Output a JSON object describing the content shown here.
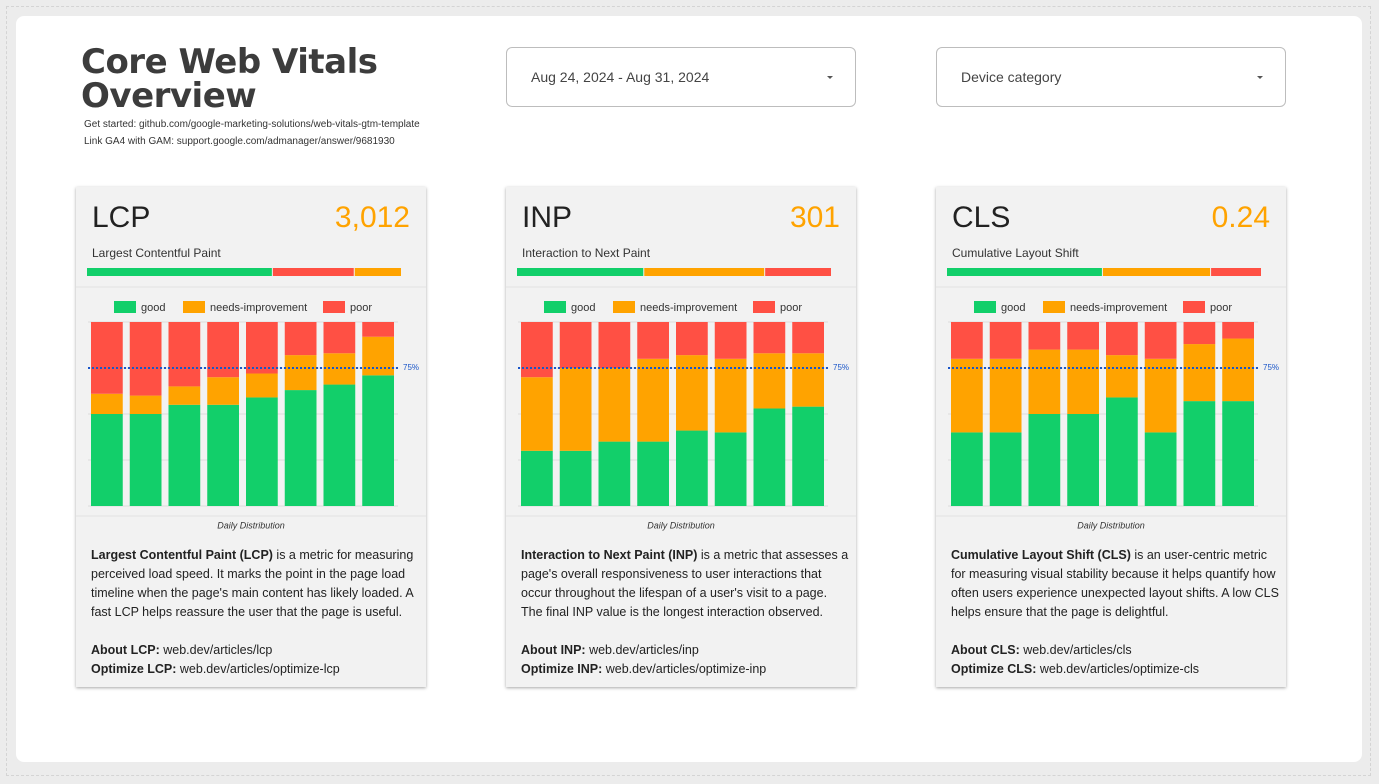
{
  "header": {
    "title": "Core Web Vitals Overview",
    "links": [
      "Get started: github.com/google-marketing-solutions/web-vitals-gtm-template",
      "Link GA4 with GAM: support.google.com/admanager/answer/9681930"
    ]
  },
  "filters": [
    {
      "label": "Aug 24, 2024 - Aug 31, 2024"
    },
    {
      "label": "Device category"
    }
  ],
  "cards": [
    {
      "title": "LCP",
      "value": "3,012",
      "subtitle": "Largest Contentful Paint",
      "summary": [
        {
          "value": 59,
          "color": "#12cf6a"
        },
        {
          "value": 26,
          "color": "#ff5044"
        },
        {
          "value": 15,
          "color": "#ffa300"
        }
      ],
      "caption": "Daily Distribution",
      "description_lead": "Largest Contentful Paint (LCP)",
      "description": " is a metric for measuring perceived load speed. It marks the point in the page load timeline when the page's main content has likely loaded. A fast LCP helps reassure the user that the page is useful.",
      "links": [
        {
          "label": "About LCP:",
          "url": "web.dev/articles/lcp"
        },
        {
          "label": "Optimize LCP:",
          "url": "web.dev/articles/optimize-lcp"
        }
      ]
    },
    {
      "title": "INP",
      "value": "301",
      "subtitle": "Interaction to Next Paint",
      "summary": [
        {
          "value": 40,
          "color": "#12cf6a"
        },
        {
          "value": 38,
          "color": "#ffa300"
        },
        {
          "value": 21,
          "color": "#ff5044"
        }
      ],
      "caption": "Daily Distribution",
      "description_lead": "Interaction to Next Paint (INP)",
      "description": " is a metric that assesses a page's overall responsiveness to user interactions that occur throughout the lifespan of a user's visit to a page. The final INP value is the longest interaction observed.",
      "links": [
        {
          "label": "About INP:",
          "url": "web.dev/articles/inp"
        },
        {
          "label": "Optimize INP:",
          "url": "web.dev/articles/optimize-inp"
        }
      ]
    },
    {
      "title": "CLS",
      "value": "0.24",
      "subtitle": "Cumulative Layout Shift",
      "summary": [
        {
          "value": 49,
          "color": "#12cf6a"
        },
        {
          "value": 34,
          "color": "#ffa300"
        },
        {
          "value": 16,
          "color": "#ff5044"
        }
      ],
      "caption": "Daily Distribution",
      "description_lead": "Cumulative Layout Shift (CLS)",
      "description": " is an user-centric metric for measuring visual stability because it helps quantify how often users experience unexpected layout shifts. A low CLS helps ensure that the page is delightful.",
      "links": [
        {
          "label": "About CLS:",
          "url": "web.dev/articles/cls"
        },
        {
          "label": "Optimize CLS:",
          "url": "web.dev/articles/optimize-cls"
        }
      ]
    }
  ],
  "chart_data": [
    {
      "type": "stacked-bar",
      "categories": [
        null,
        null,
        null,
        null,
        null,
        null,
        null,
        null
      ],
      "series": [
        {
          "name": "good",
          "color": "#12cf6a",
          "values": [
            50,
            50,
            55,
            55,
            59,
            63,
            66,
            71
          ]
        },
        {
          "name": "needs-improvement",
          "color": "#ffa300",
          "values": [
            11,
            10,
            10,
            15,
            13,
            19,
            17,
            21
          ]
        },
        {
          "name": "poor",
          "color": "#ff5044",
          "values": [
            39,
            40,
            35,
            30,
            28,
            18,
            17,
            8
          ]
        }
      ],
      "ylim": [
        0,
        100
      ],
      "yticks": [
        0,
        25,
        50,
        75,
        100
      ],
      "grid": true,
      "threshold": {
        "value": 75,
        "label": "75%",
        "color": "#1a56c8"
      }
    },
    {
      "type": "stacked-bar",
      "categories": [
        null,
        null,
        null,
        null,
        null,
        null,
        null,
        null
      ],
      "series": [
        {
          "name": "good",
          "color": "#12cf6a",
          "values": [
            30,
            30,
            35,
            35,
            41,
            40,
            53,
            54
          ]
        },
        {
          "name": "needs-improvement",
          "color": "#ffa300",
          "values": [
            40,
            45,
            40,
            45,
            41,
            40,
            30,
            29
          ]
        },
        {
          "name": "poor",
          "color": "#ff5044",
          "values": [
            30,
            25,
            25,
            20,
            18,
            20,
            17,
            17
          ]
        }
      ],
      "ylim": [
        0,
        100
      ],
      "yticks": [
        0,
        25,
        50,
        75,
        100
      ],
      "grid": true,
      "threshold": {
        "value": 75,
        "label": "75%",
        "color": "#1a56c8"
      }
    },
    {
      "type": "stacked-bar",
      "categories": [
        null,
        null,
        null,
        null,
        null,
        null,
        null,
        null
      ],
      "series": [
        {
          "name": "good",
          "color": "#12cf6a",
          "values": [
            40,
            40,
            50,
            50,
            59,
            40,
            57,
            57
          ]
        },
        {
          "name": "needs-improvement",
          "color": "#ffa300",
          "values": [
            40,
            40,
            35,
            35,
            23,
            40,
            31,
            34
          ]
        },
        {
          "name": "poor",
          "color": "#ff5044",
          "values": [
            20,
            20,
            15,
            15,
            18,
            20,
            12,
            9
          ]
        }
      ],
      "ylim": [
        0,
        100
      ],
      "yticks": [
        0,
        25,
        50,
        75,
        100
      ],
      "grid": true,
      "threshold": {
        "value": 75,
        "label": "75%",
        "color": "#1a56c8"
      }
    }
  ]
}
